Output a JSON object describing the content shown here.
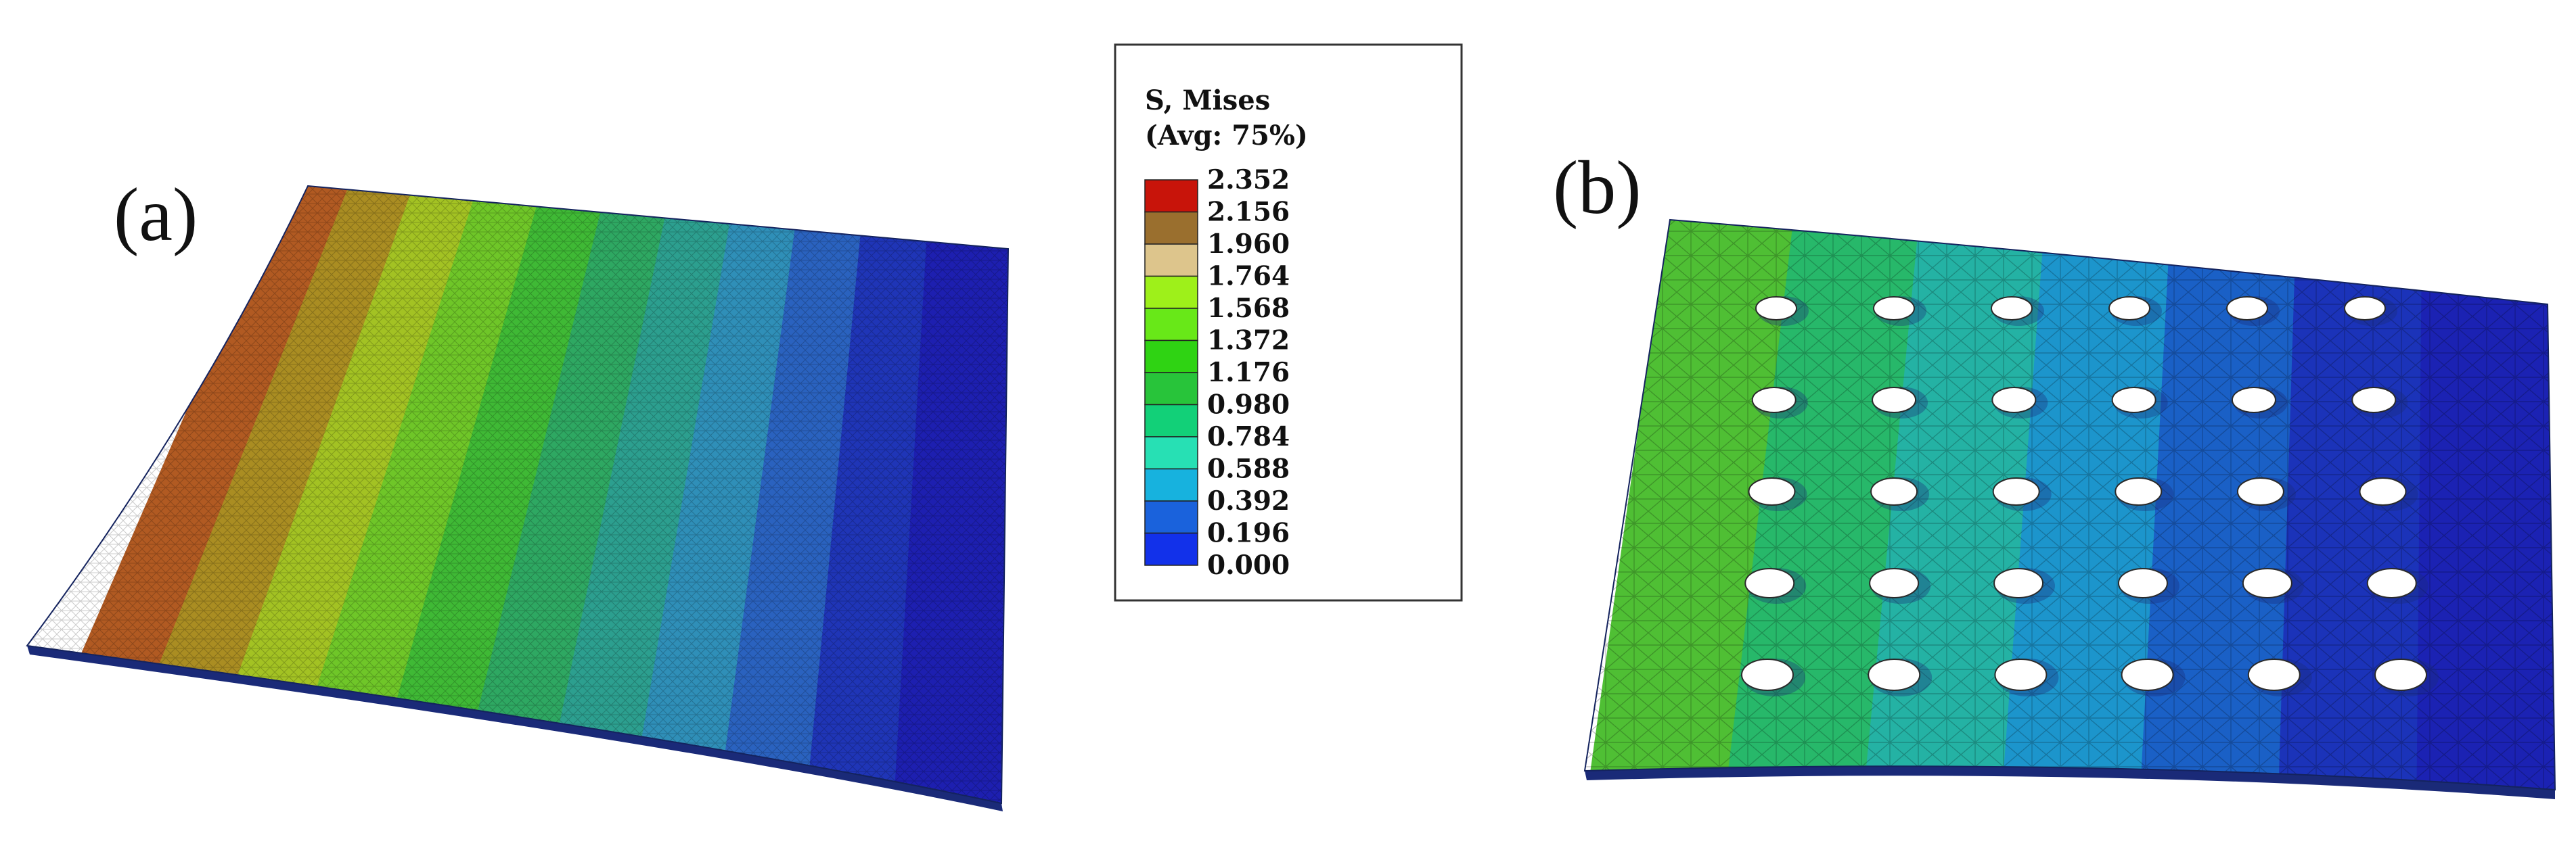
{
  "panels": [
    {
      "label": "(a)",
      "description_key": "plain-plate"
    },
    {
      "label": "(b)",
      "description_key": "perforated-plate"
    }
  ],
  "legend": {
    "title_line1": "S, Mises",
    "title_line2": "(Avg: 75%)",
    "ticks": [
      "2.352",
      "2.156",
      "1.960",
      "1.764",
      "1.568",
      "1.372",
      "1.176",
      "0.980",
      "0.784",
      "0.588",
      "0.392",
      "0.196",
      "0.000"
    ],
    "colors": [
      "#c8140a",
      "#9a6f2e",
      "#ddc58c",
      "#9ef01a",
      "#68e818",
      "#2fd313",
      "#28c43a",
      "#12d078",
      "#27e0b4",
      "#17b2de",
      "#1a62dc",
      "#1231ea"
    ]
  },
  "plate_a": {
    "band_colors": [
      "#b15a22",
      "#aa8d22",
      "#a3c223",
      "#6fc628",
      "#3fb935",
      "#2ea862",
      "#2c9f8f",
      "#2f8fb8",
      "#2a62bf",
      "#1f35b7",
      "#1d1fb0"
    ]
  },
  "plate_b": {
    "band_colors": [
      "#4fbf34",
      "#27b86a",
      "#24b2a4",
      "#1c95cc",
      "#1a60c6",
      "#1b33b9",
      "#1b22b3"
    ],
    "hole_rows": 5,
    "hole_cols": 6
  }
}
